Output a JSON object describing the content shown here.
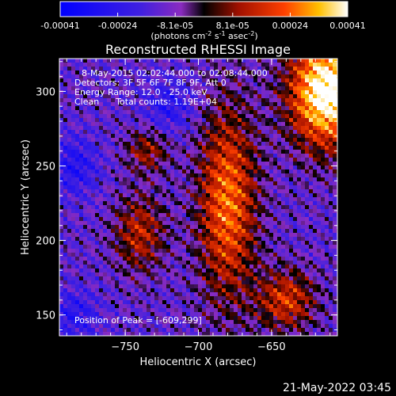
{
  "chart_data": {
    "type": "heatmap",
    "title": "Reconstructed RHESSI Image",
    "xlabel": "Heliocentric X (arcsec)",
    "ylabel": "Heliocentric Y (arcsec)",
    "xlim": [
      -795,
      -605
    ],
    "ylim": [
      136,
      322
    ],
    "xticks": [
      -750,
      -700,
      -650
    ],
    "yticks": [
      150,
      200,
      250,
      300
    ],
    "colorbar": {
      "min": -0.00041,
      "max": 0.00041,
      "tick_labels": [
        "-0.00041",
        "-0.00024",
        "-8.1e-05",
        "8.1e-05",
        "0.00024",
        "0.00041"
      ],
      "units_text": "(photons cm",
      "units_sup1": "-2",
      "units_mid": " s",
      "units_sup2": "-1",
      "units_end": " asec",
      "units_sup3": "-2",
      "units_close": ")"
    },
    "annotations": [
      "8-May-2015 02:02:44.000 to 02:08:44.000",
      "Detectors: 3F 5F 6F 7F 8F 9F, Att 0",
      "Energy Range: 12.0 - 25.0 keV",
      "Clean      Total counts: 1.19E+04"
    ],
    "peak_label": "Position of Peak = [-609,299]",
    "peak": [
      -609,
      299
    ],
    "grid": false,
    "colors": {
      "low": "#0000ff",
      "mid_low": "#7a30c8",
      "zero": "#000000",
      "mid_high": "#e03000",
      "high": "#ffffff"
    }
  },
  "timestamp": "21-May-2022 03:45"
}
